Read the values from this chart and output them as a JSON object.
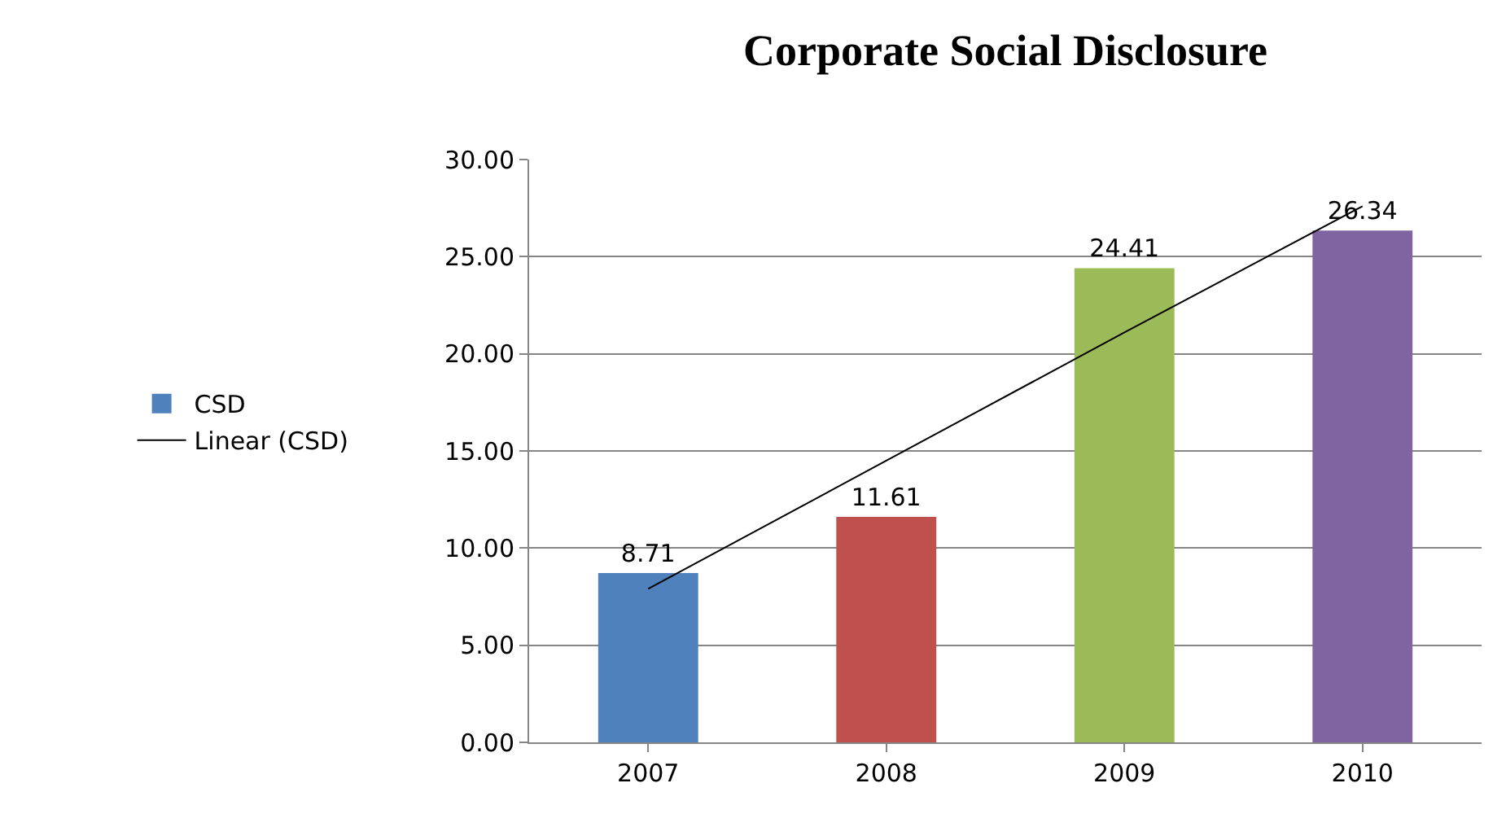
{
  "chart_data": {
    "type": "bar",
    "title": "Corporate Social Disclosure",
    "categories": [
      "2007",
      "2008",
      "2009",
      "2010"
    ],
    "series": [
      {
        "name": "CSD",
        "colors": [
          "#4f81bd",
          "#c0504d",
          "#9bbb59",
          "#8064a2"
        ],
        "values": [
          8.71,
          11.61,
          24.41,
          26.34
        ],
        "value_labels": [
          "8.71",
          "11.61",
          "24.41",
          "26.34"
        ]
      },
      {
        "name": "Linear (CSD)",
        "type": "line",
        "color": "#000000",
        "values": [
          7.9,
          14.5,
          21.1,
          27.6
        ]
      }
    ],
    "ylim": [
      0,
      30
    ],
    "yticks": [
      {
        "value": 0,
        "label": "0.00"
      },
      {
        "value": 5,
        "label": "5.00"
      },
      {
        "value": 10,
        "label": "10.00"
      },
      {
        "value": 15,
        "label": "15.00"
      },
      {
        "value": 20,
        "label": "20.00"
      },
      {
        "value": 25,
        "label": "25.00"
      },
      {
        "value": 30,
        "label": "30.00"
      }
    ],
    "grid": "y",
    "legend": "left",
    "marker": "none"
  }
}
